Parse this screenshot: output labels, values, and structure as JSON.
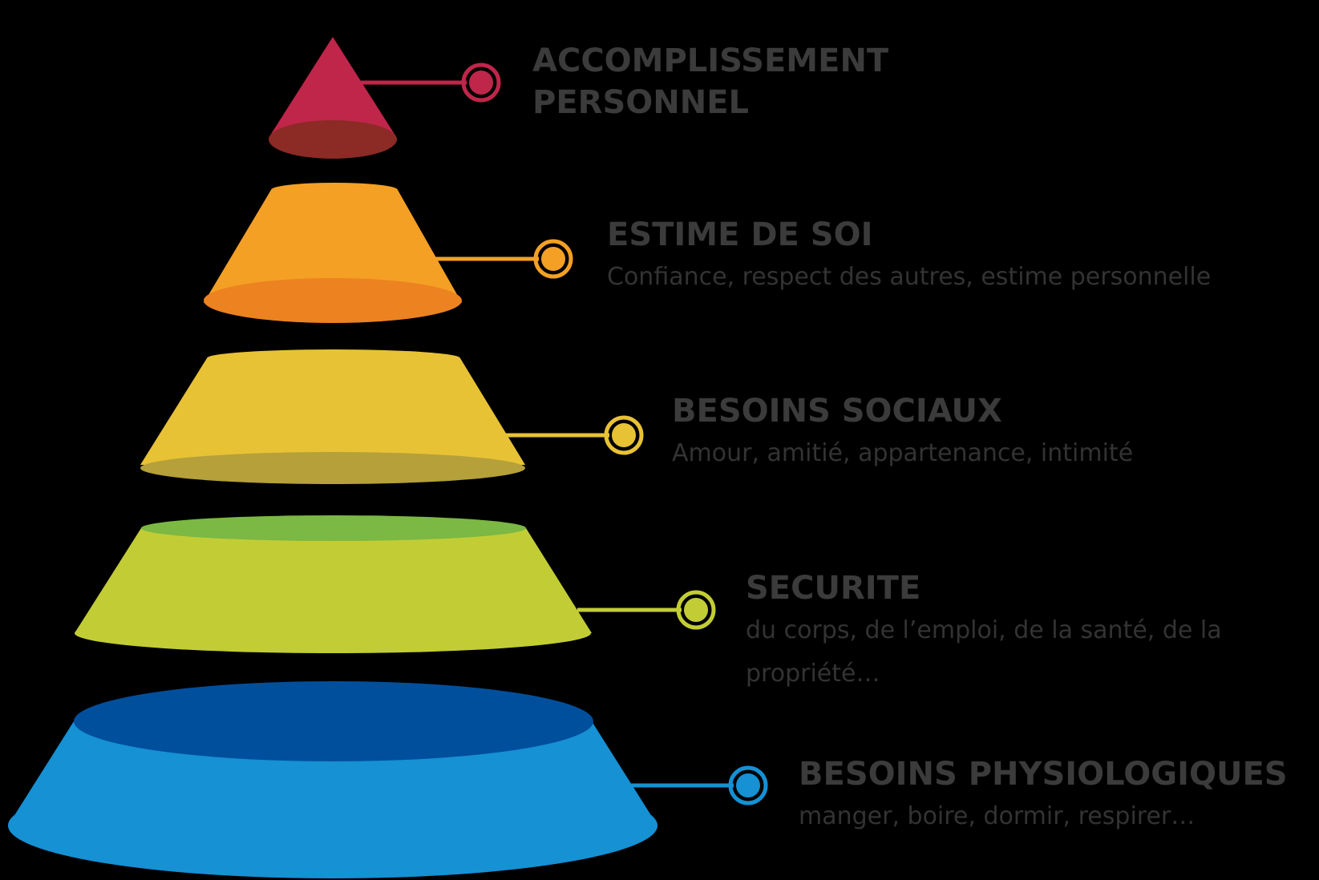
{
  "levels": [
    {
      "title_line1": "ACCOMPLISSEMENT",
      "title_line2": "PERSONNEL",
      "description": "",
      "color": "#c0254a",
      "shade": "#8c2a26"
    },
    {
      "title_line1": "ESTIME DE SOI",
      "title_line2": "",
      "description": "Confiance, respect des autres, estime personnelle",
      "color": "#f4a024",
      "shade": "#ed8220"
    },
    {
      "title_line1": "BESOINS SOCIAUX",
      "title_line2": "",
      "description": "Amour, amitié, appartenance, intimité",
      "color": "#e8c235",
      "shade": "#b5a03a"
    },
    {
      "title_line1": "SECURITE",
      "title_line2": "",
      "description": "du corps, de l’emploi, de la santé, de la propriété…",
      "color": "#c2cd35",
      "shade": "#7bb844"
    },
    {
      "title_line1": "BESOINS PHYSIOLOGIQUES",
      "title_line2": "",
      "description": "manger, boire, dormir, respirer…",
      "color": "#1591d4",
      "shade": "#004f9c"
    }
  ]
}
